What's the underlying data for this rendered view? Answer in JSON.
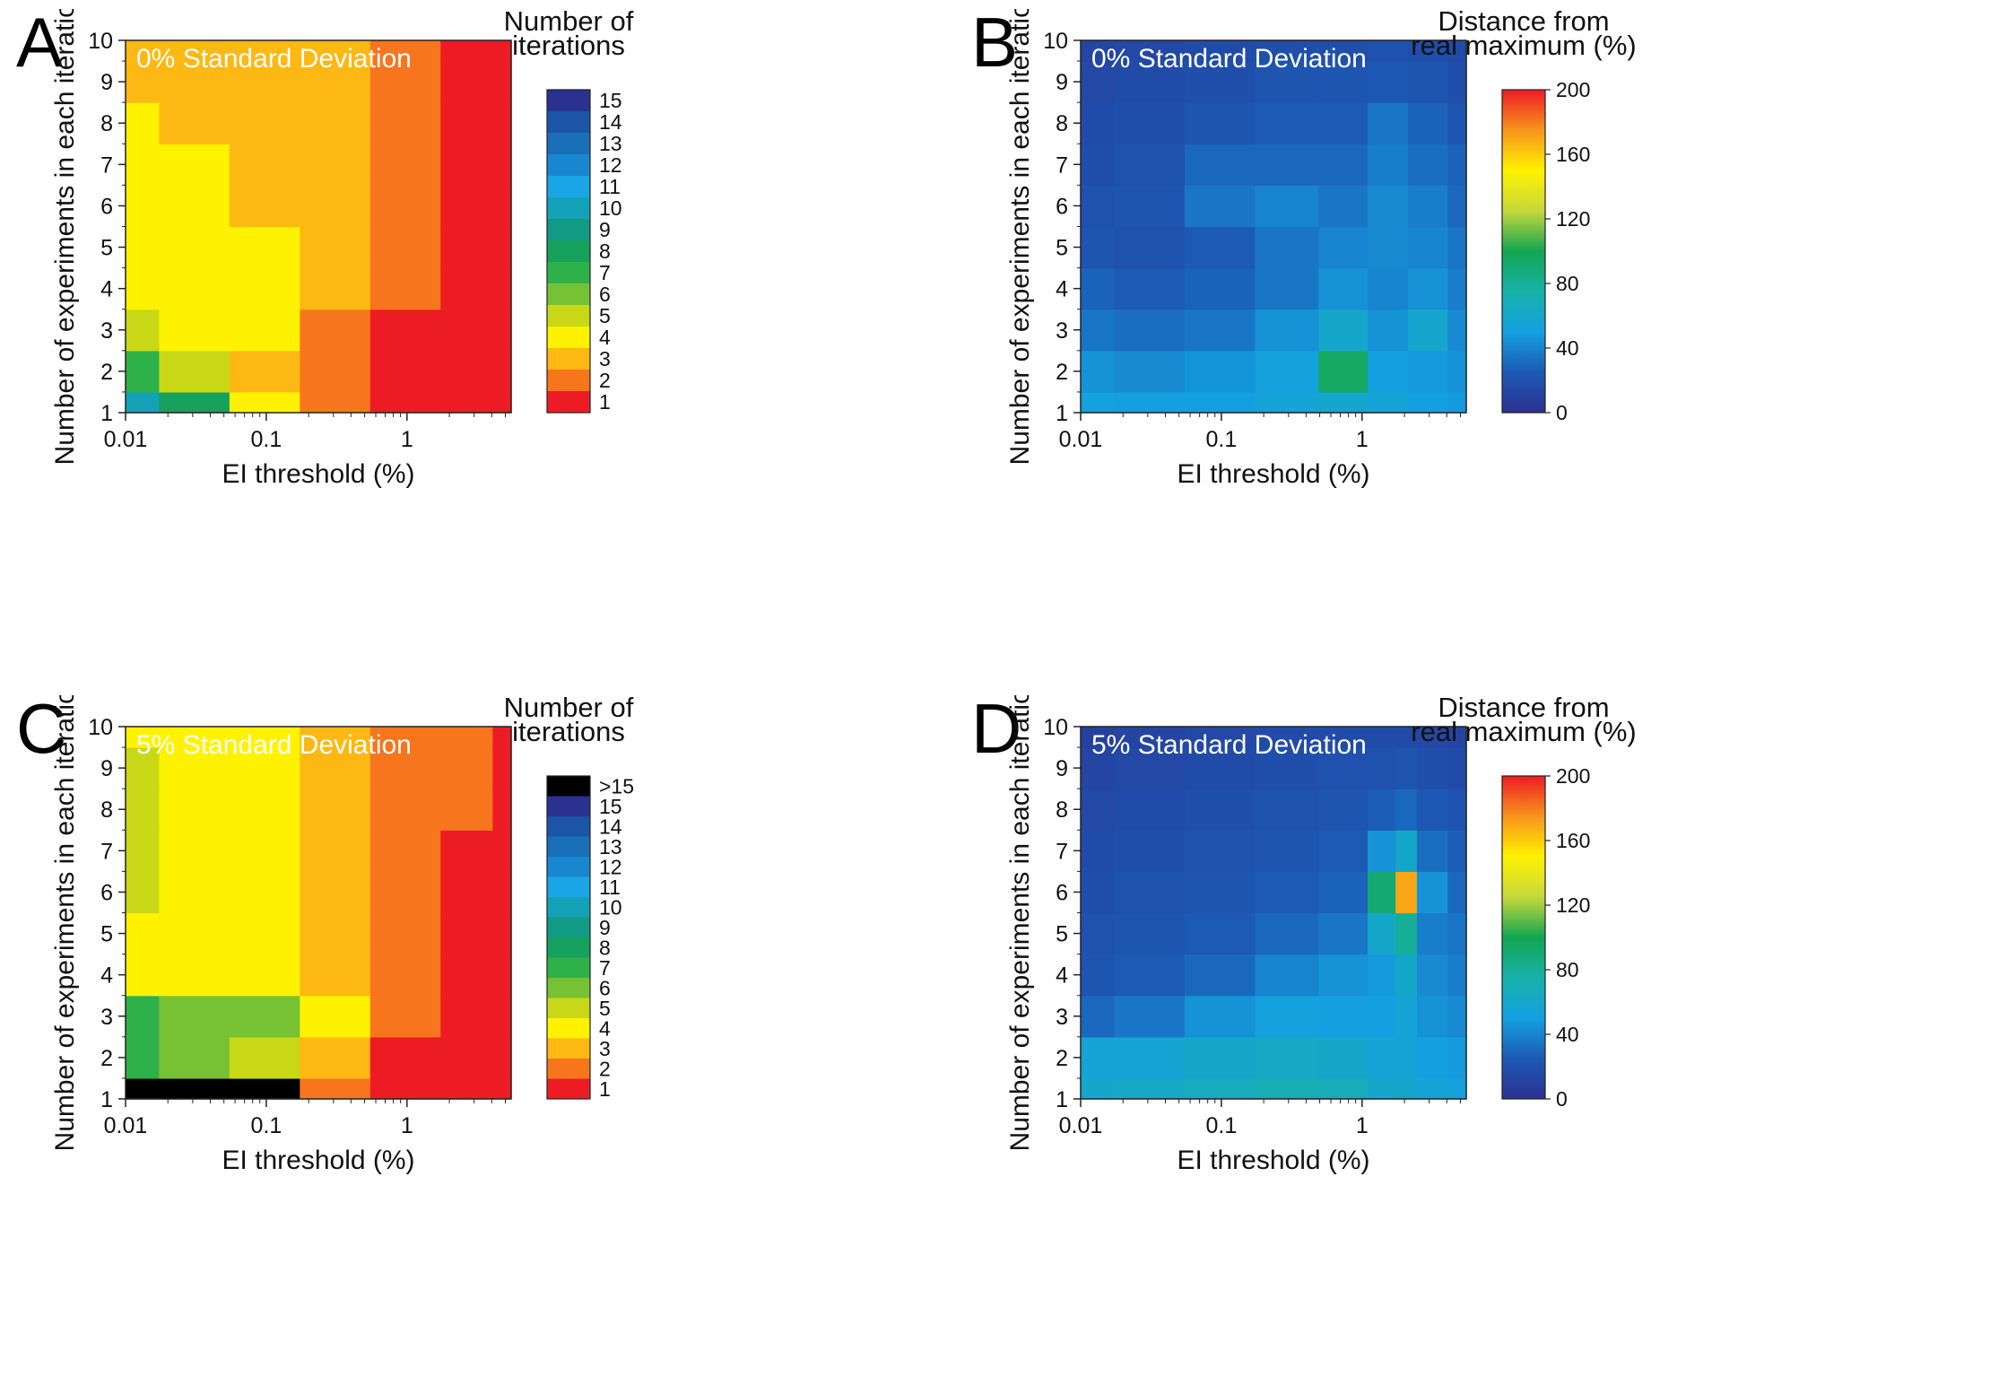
{
  "chart_data": [
    {
      "panel": "A",
      "type": "heatmap",
      "title": "0% Standard Deviation",
      "title_color": "#ffffff",
      "xlabel": "EI threshold (%)",
      "ylabel": "Number of experiments in each iteration",
      "xscale": "log",
      "xlim": [
        0.01,
        5.5
      ],
      "ylim": [
        1,
        10
      ],
      "x_ticks": [
        "0.01",
        "0.1",
        "1"
      ],
      "x_tick_values": [
        0.01,
        0.1,
        1
      ],
      "y_ticks": [
        "1",
        "2",
        "3",
        "4",
        "5",
        "6",
        "7",
        "8",
        "9",
        "10"
      ],
      "y_tick_values": [
        1,
        2,
        3,
        4,
        5,
        6,
        7,
        8,
        9,
        10
      ],
      "colorbar": {
        "title": [
          "Number of",
          "iterations"
        ],
        "kind": "discrete",
        "labels": [
          "15",
          "14",
          "13",
          "12",
          "11",
          "10",
          "9",
          "8",
          "7",
          "6",
          "5",
          "4",
          "3",
          "2",
          "1"
        ],
        "colors": [
          "#2b3191",
          "#1c55a5",
          "#1a70b8",
          "#1987cf",
          "#1aa6e6",
          "#14a2b8",
          "#119a84",
          "#16a15c",
          "#2fb14a",
          "#76c234",
          "#c8d816",
          "#fff200",
          "#fdb813",
          "#f7761d",
          "#ed1c24"
        ]
      },
      "series_x": [
        0.01,
        0.03,
        0.1,
        0.3,
        1,
        3,
        5.5
      ],
      "series_y": [
        1,
        2,
        3,
        4,
        5,
        6,
        7,
        8,
        9,
        10
      ],
      "values": [
        [
          10,
          8,
          4,
          2,
          1,
          1,
          1
        ],
        [
          7,
          5,
          3,
          2,
          1,
          1,
          1
        ],
        [
          5,
          4,
          4,
          2,
          1,
          1,
          1
        ],
        [
          4,
          4,
          4,
          3,
          2,
          1,
          1
        ],
        [
          4,
          4,
          4,
          3,
          2,
          1,
          1
        ],
        [
          4,
          4,
          3,
          3,
          2,
          1,
          1
        ],
        [
          4,
          4,
          3,
          3,
          2,
          1,
          1
        ],
        [
          4,
          3,
          3,
          3,
          2,
          1,
          1
        ],
        [
          3,
          3,
          3,
          3,
          2,
          1,
          1
        ],
        [
          3,
          3,
          3,
          3,
          2,
          1,
          1
        ]
      ]
    },
    {
      "panel": "B",
      "type": "heatmap",
      "title": "0% Standard Deviation",
      "title_color": "#ffffff",
      "xlabel": "EI threshold (%)",
      "ylabel": "Number of experiments in each iteration",
      "xscale": "log",
      "xlim": [
        0.01,
        5.5
      ],
      "ylim": [
        1,
        10
      ],
      "x_ticks": [
        "0.01",
        "0.1",
        "1"
      ],
      "x_tick_values": [
        0.01,
        0.1,
        1
      ],
      "y_ticks": [
        "1",
        "2",
        "3",
        "4",
        "5",
        "6",
        "7",
        "8",
        "9",
        "10"
      ],
      "y_tick_values": [
        1,
        2,
        3,
        4,
        5,
        6,
        7,
        8,
        9,
        10
      ],
      "colorbar": {
        "title": [
          "Distance from",
          "real maximum (%)"
        ],
        "kind": "continuous",
        "labels": [
          "200",
          "160",
          "120",
          "80",
          "40",
          "0"
        ],
        "label_values": [
          200,
          160,
          120,
          80,
          40,
          0
        ],
        "range": [
          0,
          200
        ],
        "colors": [
          "#2b3191",
          "#1c5ab5",
          "#14a0e0",
          "#17b2a8",
          "#13a551",
          "#c6d83c",
          "#fff200",
          "#f7941d",
          "#ed1c24"
        ]
      },
      "series_x": [
        0.01,
        0.03,
        0.1,
        0.3,
        0.8,
        1.5,
        3,
        5.5
      ],
      "series_y": [
        1,
        2,
        3,
        4,
        5,
        6,
        7,
        8,
        9,
        10
      ],
      "values": [
        [
          52,
          50,
          50,
          55,
          58,
          55,
          50,
          48
        ],
        [
          45,
          42,
          46,
          52,
          95,
          50,
          48,
          45
        ],
        [
          35,
          32,
          35,
          45,
          60,
          45,
          58,
          42
        ],
        [
          28,
          25,
          28,
          35,
          45,
          40,
          45,
          38
        ],
        [
          22,
          20,
          25,
          35,
          40,
          42,
          40,
          35
        ],
        [
          20,
          22,
          35,
          40,
          35,
          42,
          38,
          30
        ],
        [
          18,
          20,
          30,
          30,
          30,
          38,
          32,
          28
        ],
        [
          16,
          18,
          22,
          25,
          25,
          35,
          28,
          22
        ],
        [
          14,
          16,
          18,
          22,
          22,
          24,
          22,
          18
        ],
        [
          12,
          14,
          16,
          18,
          18,
          20,
          18,
          16
        ]
      ]
    },
    {
      "panel": "C",
      "type": "heatmap",
      "title": "5% Standard Deviation",
      "title_color": "#ffffff",
      "xlabel": "EI threshold (%)",
      "ylabel": "Number of experiments in each iteration",
      "xscale": "log",
      "xlim": [
        0.01,
        5.5
      ],
      "ylim": [
        1,
        10
      ],
      "x_ticks": [
        "0.01",
        "0.1",
        "1"
      ],
      "x_tick_values": [
        0.01,
        0.1,
        1
      ],
      "y_ticks": [
        "1",
        "2",
        "3",
        "4",
        "5",
        "6",
        "7",
        "8",
        "9",
        "10"
      ],
      "y_tick_values": [
        1,
        2,
        3,
        4,
        5,
        6,
        7,
        8,
        9,
        10
      ],
      "colorbar": {
        "title": [
          "Number of",
          "iterations"
        ],
        "kind": "discrete",
        "labels": [
          ">15",
          "15",
          "14",
          "13",
          "12",
          "11",
          "10",
          "9",
          "8",
          "7",
          "6",
          "5",
          "4",
          "3",
          "2",
          "1"
        ],
        "colors": [
          "#000000",
          "#2b3191",
          "#1c55a5",
          "#1a70b8",
          "#1987cf",
          "#1aa6e6",
          "#14a2b8",
          "#119a84",
          "#16a15c",
          "#2fb14a",
          "#76c234",
          "#c8d816",
          "#fff200",
          "#fdb813",
          "#f7761d",
          "#ed1c24"
        ]
      },
      "series_x": [
        0.01,
        0.03,
        0.1,
        0.3,
        1,
        3,
        5.5
      ],
      "series_y": [
        1,
        2,
        3,
        4,
        5,
        6,
        7,
        8,
        9,
        10
      ],
      "values": [
        [
          16,
          16,
          16,
          2,
          1,
          1,
          1
        ],
        [
          7,
          6,
          5,
          3,
          1,
          1,
          1
        ],
        [
          7,
          6,
          6,
          4,
          2,
          1,
          1
        ],
        [
          4,
          4,
          4,
          3,
          2,
          1,
          1
        ],
        [
          4,
          4,
          4,
          3,
          2,
          1,
          1
        ],
        [
          5,
          4,
          4,
          3,
          2,
          1,
          1
        ],
        [
          5,
          4,
          4,
          3,
          2,
          1,
          1
        ],
        [
          5,
          4,
          4,
          3,
          2,
          2,
          1
        ],
        [
          5,
          4,
          4,
          3,
          2,
          2,
          1
        ],
        [
          4,
          4,
          4,
          3,
          2,
          2,
          1
        ]
      ]
    },
    {
      "panel": "D",
      "type": "heatmap",
      "title": "5% Standard Deviation",
      "title_color": "#ffffff",
      "xlabel": "EI threshold (%)",
      "ylabel": "Number of experiments in each iteration",
      "xscale": "log",
      "xlim": [
        0.01,
        5.5
      ],
      "ylim": [
        1,
        10
      ],
      "x_ticks": [
        "0.01",
        "0.1",
        "1"
      ],
      "x_tick_values": [
        0.01,
        0.1,
        1
      ],
      "y_ticks": [
        "1",
        "2",
        "3",
        "4",
        "5",
        "6",
        "7",
        "8",
        "9",
        "10"
      ],
      "y_tick_values": [
        1,
        2,
        3,
        4,
        5,
        6,
        7,
        8,
        9,
        10
      ],
      "colorbar": {
        "title": [
          "Distance from",
          "real maximum (%)"
        ],
        "kind": "continuous",
        "labels": [
          "200",
          "160",
          "120",
          "80",
          "40",
          "0"
        ],
        "label_values": [
          200,
          160,
          120,
          80,
          40,
          0
        ],
        "range": [
          0,
          200
        ],
        "colors": [
          "#2b3191",
          "#1c5ab5",
          "#14a0e0",
          "#17b2a8",
          "#13a551",
          "#c6d83c",
          "#fff200",
          "#f7941d",
          "#ed1c24"
        ]
      },
      "series_x": [
        0.01,
        0.03,
        0.1,
        0.3,
        0.8,
        1.5,
        2,
        3,
        5.5
      ],
      "series_y": [
        1,
        2,
        3,
        4,
        5,
        6,
        7,
        8,
        9,
        10
      ],
      "values": [
        [
          60,
          62,
          65,
          70,
          68,
          60,
          58,
          55,
          52
        ],
        [
          55,
          56,
          60,
          62,
          60,
          55,
          55,
          50,
          48
        ],
        [
          30,
          35,
          45,
          52,
          50,
          50,
          55,
          45,
          42
        ],
        [
          22,
          25,
          30,
          40,
          45,
          48,
          60,
          42,
          38
        ],
        [
          20,
          22,
          25,
          30,
          35,
          60,
          80,
          38,
          35
        ],
        [
          18,
          20,
          22,
          25,
          28,
          90,
          170,
          45,
          30
        ],
        [
          16,
          18,
          20,
          22,
          25,
          45,
          60,
          32,
          26
        ],
        [
          14,
          16,
          18,
          20,
          22,
          26,
          30,
          24,
          20
        ],
        [
          12,
          14,
          16,
          18,
          20,
          20,
          22,
          18,
          16
        ],
        [
          10,
          12,
          14,
          16,
          16,
          16,
          16,
          14,
          12
        ]
      ]
    }
  ],
  "panels": [
    {
      "letter": "A"
    },
    {
      "letter": "B"
    },
    {
      "letter": "C"
    },
    {
      "letter": "D"
    }
  ]
}
